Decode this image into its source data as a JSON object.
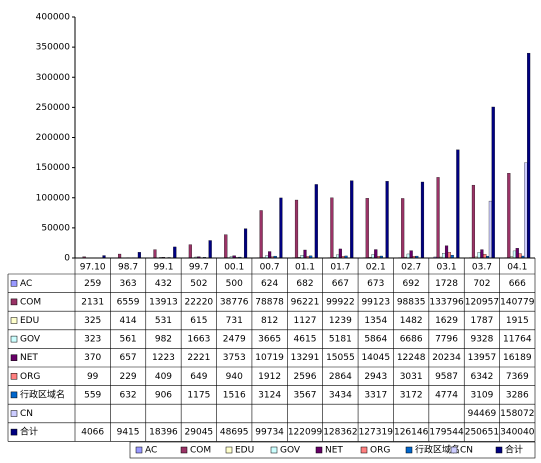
{
  "chart_data": {
    "type": "bar",
    "categories": [
      "97.10",
      "98.7",
      "99.1",
      "99.7",
      "00.1",
      "00.7",
      "01.1",
      "01.7",
      "02.1",
      "02.7",
      "03.1",
      "03.7",
      "04.1"
    ],
    "series": [
      {
        "name": "AC",
        "color": "#9999ff",
        "values": [
          259,
          363,
          432,
          502,
          500,
          624,
          682,
          667,
          673,
          692,
          1728,
          702,
          666
        ]
      },
      {
        "name": "COM",
        "color": "#993366",
        "values": [
          2131,
          6559,
          13913,
          22220,
          38776,
          78878,
          96221,
          99922,
          99123,
          98835,
          133796,
          120957,
          140779
        ]
      },
      {
        "name": "EDU",
        "color": "#ffffcc",
        "values": [
          325,
          414,
          531,
          615,
          731,
          812,
          1127,
          1239,
          1354,
          1482,
          1629,
          1787,
          1915
        ]
      },
      {
        "name": "GOV",
        "color": "#ccffff",
        "values": [
          323,
          561,
          982,
          1663,
          2479,
          3665,
          4615,
          5181,
          5864,
          6686,
          7796,
          9328,
          11764
        ]
      },
      {
        "name": "NET",
        "color": "#660066",
        "values": [
          370,
          657,
          1223,
          2221,
          3753,
          10719,
          13291,
          15055,
          14045,
          12248,
          20234,
          13957,
          16189
        ]
      },
      {
        "name": "ORG",
        "color": "#ff8080",
        "values": [
          99,
          229,
          409,
          649,
          940,
          1912,
          2596,
          2864,
          2943,
          3031,
          9587,
          6342,
          7369
        ]
      },
      {
        "name": "行政区域名",
        "color": "#0066cc",
        "values": [
          559,
          632,
          906,
          1175,
          1516,
          3124,
          3567,
          3434,
          3317,
          3172,
          4774,
          3109,
          3286
        ]
      },
      {
        "name": "CN",
        "color": "#ccccff",
        "values": [
          null,
          null,
          null,
          null,
          null,
          null,
          null,
          null,
          null,
          null,
          null,
          94469,
          158072
        ]
      },
      {
        "name": "合计",
        "color": "#000080",
        "values": [
          4066,
          9415,
          18396,
          29045,
          48695,
          99734,
          122099,
          128362,
          127319,
          126146,
          179544,
          250651,
          340040
        ]
      }
    ],
    "ylim": [
      0,
      400000
    ],
    "yticks": [
      0,
      50000,
      100000,
      150000,
      200000,
      250000,
      300000,
      350000,
      400000
    ],
    "legend": "bottom"
  }
}
